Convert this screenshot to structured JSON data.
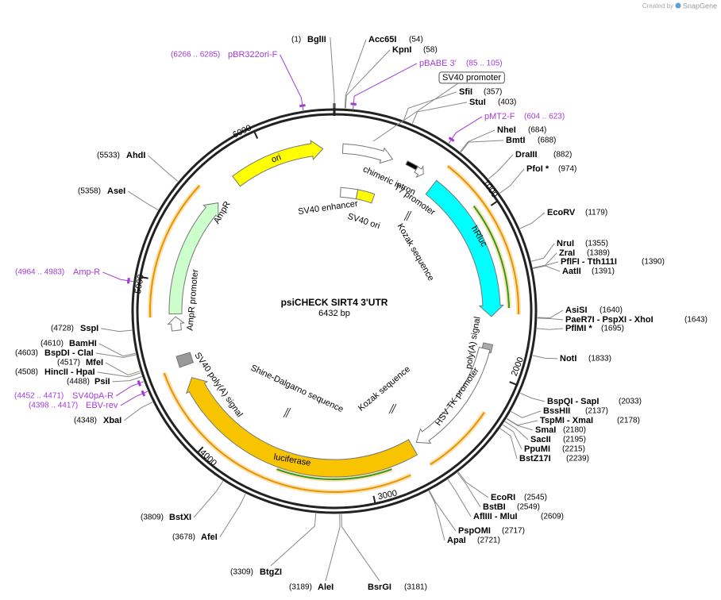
{
  "header": {
    "credit": "Created by",
    "brand": "SnapGene"
  },
  "title": "psiCHECK SIRT4 3'UTR",
  "length": "6432 bp",
  "ruler": [
    1000,
    2000,
    3000,
    4000,
    5000,
    6000
  ],
  "sites": [
    {
      "name": "BglII",
      "position": "(1)"
    },
    {
      "name": "Acc65I",
      "position": "(54)"
    },
    {
      "name": "KpnI",
      "position": "(58)"
    },
    {
      "name": "SfiI",
      "position": "(357)"
    },
    {
      "name": "StuI",
      "position": "(403)"
    },
    {
      "name": "NheI",
      "position": "(684)"
    },
    {
      "name": "BmtI",
      "position": "(688)"
    },
    {
      "name": "DraIII",
      "position": "(882)"
    },
    {
      "name": "PfoI *",
      "position": "(974)"
    },
    {
      "name": "EcoRV",
      "position": "(1179)"
    },
    {
      "name": "NruI",
      "position": "(1355)"
    },
    {
      "name": "ZraI",
      "position": "(1389)"
    },
    {
      "name": "PflFI - Tth111I",
      "position": "(1390)"
    },
    {
      "name": "AatII",
      "position": "(1391)"
    },
    {
      "name": "AsiSI",
      "position": "(1640)"
    },
    {
      "name": "PaeR7I - PspXI - XhoI",
      "position": "(1643)"
    },
    {
      "name": "PflMI *",
      "position": "(1695)"
    },
    {
      "name": "NotI",
      "position": "(1833)"
    },
    {
      "name": "BspQI - SapI",
      "position": "(2033)"
    },
    {
      "name": "BssHII",
      "position": "(2137)"
    },
    {
      "name": "TspMI - XmaI",
      "position": "(2178)"
    },
    {
      "name": "SmaI",
      "position": "(2180)"
    },
    {
      "name": "SacII",
      "position": "(2195)"
    },
    {
      "name": "PpuMI",
      "position": "(2215)"
    },
    {
      "name": "BstZ17I",
      "position": "(2239)"
    },
    {
      "name": "EcoRI",
      "position": "(2545)"
    },
    {
      "name": "BstBI",
      "position": "(2549)"
    },
    {
      "name": "AflIII - MluI",
      "position": "(2609)"
    },
    {
      "name": "PspOMI",
      "position": "(2717)"
    },
    {
      "name": "ApaI",
      "position": "(2721)"
    },
    {
      "name": "BsrGI",
      "position": "(3181)"
    },
    {
      "name": "AleI",
      "position": "(3189)"
    },
    {
      "name": "BtgZI",
      "position": "(3309)"
    },
    {
      "name": "AfeI",
      "position": "(3678)"
    },
    {
      "name": "BstXI",
      "position": "(3809)"
    },
    {
      "name": "XbaI",
      "position": "(4348)"
    },
    {
      "name": "PsiI",
      "position": "(4488)"
    },
    {
      "name": "HincII - HpaI",
      "position": "(4508)"
    },
    {
      "name": "MfeI",
      "position": "(4517)"
    },
    {
      "name": "BspDI - ClaI",
      "position": "(4603)"
    },
    {
      "name": "BamHI",
      "position": "(4610)"
    },
    {
      "name": "SspI",
      "position": "(4728)"
    },
    {
      "name": "AseI",
      "position": "(5358)"
    },
    {
      "name": "AhdI",
      "position": "(5533)"
    }
  ],
  "primers": [
    {
      "name": "pBABE 3'",
      "range": "(85 .. 105)"
    },
    {
      "name": "pMT2-F",
      "range": "(604 .. 623)"
    },
    {
      "name": "EBV-rev",
      "range": "(4398 .. 4417)"
    },
    {
      "name": "SV40pA-R",
      "range": "(4452 .. 4471)"
    },
    {
      "name": "Amp-R",
      "range": "(4964 .. 4983)"
    },
    {
      "name": "pBR322ori-F",
      "range": "(6266 .. 6285)"
    }
  ],
  "features": [
    {
      "label": "ori"
    },
    {
      "label": "chimeric intron"
    },
    {
      "label": "T7 promoter"
    },
    {
      "label": "hRluc"
    },
    {
      "label": "Kozak sequence"
    },
    {
      "label": "SV40 enhancer"
    },
    {
      "label": "SV40 ori"
    },
    {
      "label": "SV40 promoter"
    },
    {
      "label": "poly(A) signal"
    },
    {
      "label": "HSV TK promoter"
    },
    {
      "label": "Kozak sequence"
    },
    {
      "label": "luciferase"
    },
    {
      "label": "Shine-Dalgarno sequence"
    },
    {
      "label": "SV40 poly(A) signal"
    },
    {
      "label": "AmpR"
    },
    {
      "label": "AmpR promoter"
    }
  ]
}
